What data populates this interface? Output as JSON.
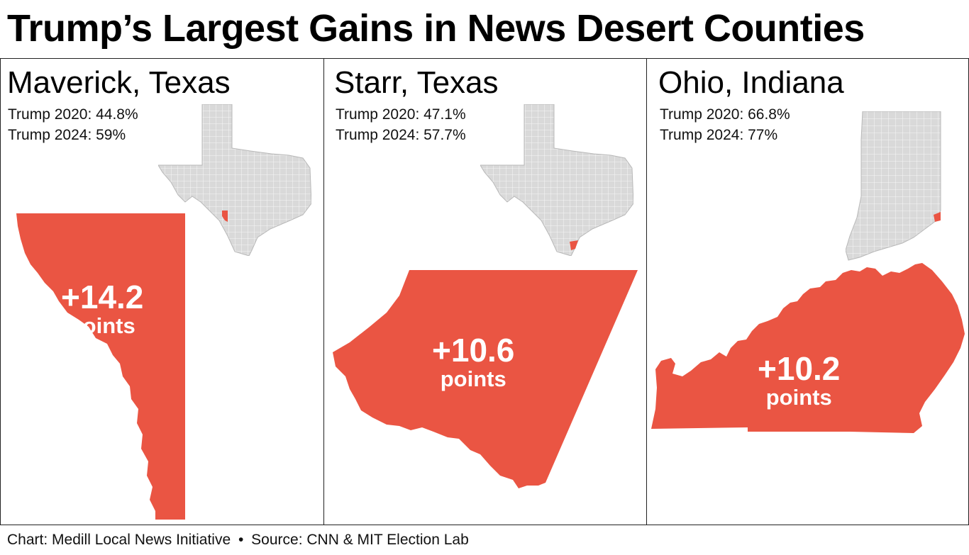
{
  "title": "Trump’s Largest Gains in News Desert Counties",
  "colors": {
    "county": "#ea5543",
    "state_fill": "#d9d9d9",
    "state_line": "#ffffff",
    "border": "#222222"
  },
  "chart_data": {
    "type": "table",
    "title": "Trump’s Largest Gains in News Desert Counties",
    "columns": [
      "county",
      "state",
      "trump_2020_pct",
      "trump_2024_pct",
      "gain_points"
    ],
    "panels": [
      {
        "heading": "Maverick, Texas",
        "county": "Maverick",
        "state": "Texas",
        "line_2020": "Trump 2020: 44.8%",
        "line_2024": "Trump 2024: 59%",
        "trump_2020": 44.8,
        "trump_2024": 59,
        "gain": "+14.2",
        "gain_value": 14.2,
        "gain_unit": "points"
      },
      {
        "heading": "Starr, Texas",
        "county": "Starr",
        "state": "Texas",
        "line_2020": "Trump 2020: 47.1%",
        "line_2024": "Trump 2024: 57.7%",
        "trump_2020": 47.1,
        "trump_2024": 57.7,
        "gain": "+10.6",
        "gain_value": 10.6,
        "gain_unit": "points"
      },
      {
        "heading": "Ohio, Indiana",
        "county": "Ohio",
        "state": "Indiana",
        "line_2020": "Trump 2020: 66.8%",
        "line_2024": "Trump 2024: 77%",
        "trump_2020": 66.8,
        "trump_2024": 77,
        "gain": "+10.2",
        "gain_value": 10.2,
        "gain_unit": "points"
      }
    ]
  },
  "footer": {
    "chart_credit": "Chart: Medill Local News Initiative",
    "separator": "•",
    "source": "Source: CNN & MIT Election Lab"
  }
}
